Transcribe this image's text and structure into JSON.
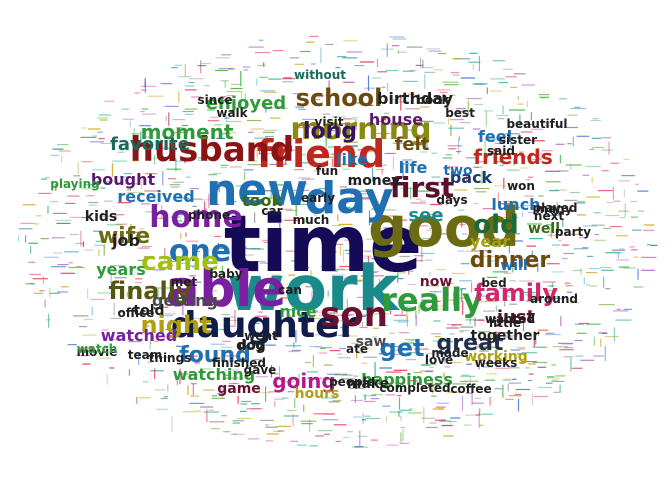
{
  "words": [
    {
      "text": "time",
      "color": "#140a55"
    },
    {
      "text": "work",
      "color": "#1a8a8a"
    },
    {
      "text": "good",
      "color": "#6b6b14"
    },
    {
      "text": "new",
      "color": "#1f6fb3"
    },
    {
      "text": "day",
      "color": "#1f6fb3"
    },
    {
      "text": "able",
      "color": "#7a1fa0"
    },
    {
      "text": "daughter",
      "color": "#101c4a"
    },
    {
      "text": "friend",
      "color": "#c0281e"
    },
    {
      "text": "son",
      "color": "#6b1030"
    },
    {
      "text": "really",
      "color": "#2f9a3a"
    },
    {
      "text": "husband",
      "color": "#8a1414"
    },
    {
      "text": "morning",
      "color": "#8a8a10"
    },
    {
      "text": "home",
      "color": "#7a1fa0"
    },
    {
      "text": "one",
      "color": "#1f6fb3"
    },
    {
      "text": "came",
      "color": "#a0c014"
    },
    {
      "text": "first",
      "color": "#5a1028"
    },
    {
      "text": "old",
      "color": "#1a6a3a"
    },
    {
      "text": "family",
      "color": "#d0286a"
    },
    {
      "text": "night",
      "color": "#b0a010"
    },
    {
      "text": "finally",
      "color": "#555510"
    },
    {
      "text": "get",
      "color": "#1f6fb3"
    },
    {
      "text": "found",
      "color": "#1f6fb3"
    },
    {
      "text": "school",
      "color": "#6a4a10"
    },
    {
      "text": "wife",
      "color": "#6b6b14"
    },
    {
      "text": "dinner",
      "color": "#6a4a10"
    },
    {
      "text": "friends",
      "color": "#c0281e"
    },
    {
      "text": "long",
      "color": "#3a1060"
    },
    {
      "text": "great",
      "color": "#20304a"
    },
    {
      "text": "going",
      "color": "#b01a8a"
    },
    {
      "text": "moment",
      "color": "#2f9a3a"
    },
    {
      "text": "favorite",
      "color": "#1a6a5a"
    },
    {
      "text": "enjoyed",
      "color": "#2f9a3a"
    },
    {
      "text": "birthday",
      "color": "#202020"
    },
    {
      "text": "house",
      "color": "#5a1870"
    },
    {
      "text": "like",
      "color": "#1f6fb3"
    },
    {
      "text": "felt",
      "color": "#6a4a10"
    },
    {
      "text": "life",
      "color": "#1f6fb3"
    },
    {
      "text": "see",
      "color": "#1a8a8a"
    },
    {
      "text": "took",
      "color": "#3a6a10"
    },
    {
      "text": "received",
      "color": "#1f6fb3"
    },
    {
      "text": "bought",
      "color": "#5a1870"
    },
    {
      "text": "job",
      "color": "#202020"
    },
    {
      "text": "years",
      "color": "#2f9a3a"
    },
    {
      "text": "getting",
      "color": "#4a4a4a"
    },
    {
      "text": "told",
      "color": "#202020"
    },
    {
      "text": "nice",
      "color": "#2f9a3a"
    },
    {
      "text": "watching",
      "color": "#2f9a3a"
    },
    {
      "text": "happiness",
      "color": "#2f9a3a"
    },
    {
      "text": "just",
      "color": "#5a1028"
    },
    {
      "text": "year",
      "color": "#a0a010"
    },
    {
      "text": "lunch",
      "color": "#1f6fb3"
    },
    {
      "text": "back",
      "color": "#1a3a6a"
    },
    {
      "text": "hours",
      "color": "#b0a010"
    },
    {
      "text": "dog",
      "color": "#202020"
    },
    {
      "text": "saw",
      "color": "#4a4a4a"
    },
    {
      "text": "will",
      "color": "#1f6fb3"
    },
    {
      "text": "now",
      "color": "#6b1030"
    },
    {
      "text": "well",
      "color": "#3a6a10"
    },
    {
      "text": "watched",
      "color": "#7a1fa0"
    },
    {
      "text": "money",
      "color": "#202020"
    },
    {
      "text": "together",
      "color": "#202020"
    },
    {
      "text": "working",
      "color": "#b0a010"
    },
    {
      "text": "make",
      "color": "#202020"
    },
    {
      "text": "two",
      "color": "#1f6fb3"
    },
    {
      "text": "feel",
      "color": "#1f6fb3"
    },
    {
      "text": "said",
      "color": "#202020"
    },
    {
      "text": "days",
      "color": "#202020"
    },
    {
      "text": "kids",
      "color": "#202020"
    },
    {
      "text": "game",
      "color": "#6b1030"
    },
    {
      "text": "played",
      "color": "#202020"
    },
    {
      "text": "ate",
      "color": "#202020"
    },
    {
      "text": "much",
      "color": "#202020"
    },
    {
      "text": "phone",
      "color": "#202020"
    },
    {
      "text": "car",
      "color": "#202020"
    },
    {
      "text": "visit",
      "color": "#202020"
    },
    {
      "text": "gave",
      "color": "#202020"
    },
    {
      "text": "finished",
      "color": "#202020"
    },
    {
      "text": "playing",
      "color": "#2f9a3a"
    },
    {
      "text": "since",
      "color": "#202020"
    },
    {
      "text": "without",
      "color": "#1a6a5a"
    },
    {
      "text": "love",
      "color": "#202020"
    },
    {
      "text": "weeks",
      "color": "#202020"
    },
    {
      "text": "movie",
      "color": "#202020"
    },
    {
      "text": "things",
      "color": "#202020"
    },
    {
      "text": "watch",
      "color": "#2f9a3a"
    },
    {
      "text": "won",
      "color": "#202020"
    },
    {
      "text": "best",
      "color": "#202020"
    },
    {
      "text": "sister",
      "color": "#202020"
    },
    {
      "text": "early",
      "color": "#202020"
    },
    {
      "text": "around",
      "color": "#202020"
    },
    {
      "text": "people",
      "color": "#202020"
    },
    {
      "text": "many",
      "color": "#202020"
    },
    {
      "text": "completed",
      "color": "#202020"
    },
    {
      "text": "wanted",
      "color": "#202020"
    },
    {
      "text": "can",
      "color": "#202020"
    },
    {
      "text": "met",
      "color": "#202020"
    },
    {
      "text": "baby",
      "color": "#202020"
    },
    {
      "text": "next",
      "color": "#202020"
    },
    {
      "text": "party",
      "color": "#202020"
    },
    {
      "text": "made",
      "color": "#202020"
    },
    {
      "text": "coffee",
      "color": "#202020"
    },
    {
      "text": "walk",
      "color": "#202020"
    },
    {
      "text": "beautiful",
      "color": "#202020"
    },
    {
      "text": "little",
      "color": "#202020"
    },
    {
      "text": "bed",
      "color": "#202020"
    },
    {
      "text": "book",
      "color": "#202020"
    },
    {
      "text": "team",
      "color": "#202020"
    },
    {
      "text": "office",
      "color": "#202020"
    },
    {
      "text": "fun",
      "color": "#202020"
    },
    {
      "text": "went",
      "color": "#202020"
    },
    {
      "text": "dog",
      "color": "#202020"
    }
  ]
}
